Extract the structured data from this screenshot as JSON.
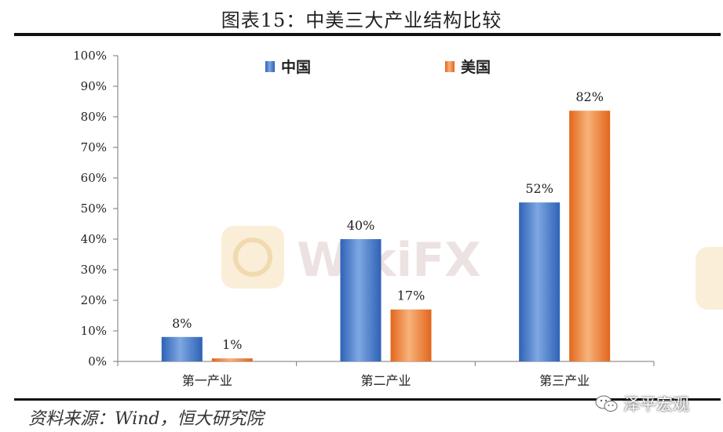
{
  "title": "图表15：中美三大产业结构比较",
  "source": "资料来源：Wind，恒大研究院",
  "wechat_account": "泽平宏观",
  "watermark_text": "WikiFX",
  "colors": {
    "china": "#4a7dc9",
    "usa": "#ee7a30"
  },
  "chart_data": {
    "type": "bar",
    "categories": [
      "第一产业",
      "第二产业",
      "第三产业"
    ],
    "series": [
      {
        "name": "中国",
        "values": [
          8,
          40,
          52
        ]
      },
      {
        "name": "美国",
        "values": [
          1,
          17,
          82
        ]
      }
    ],
    "value_labels": [
      [
        "8%",
        "40%",
        "52%"
      ],
      [
        "1%",
        "17%",
        "82%"
      ]
    ],
    "ylim": [
      0,
      100
    ],
    "yticks": [
      "0%",
      "10%",
      "20%",
      "30%",
      "40%",
      "50%",
      "60%",
      "70%",
      "80%",
      "90%",
      "100%"
    ],
    "legend_position": "top",
    "grid": false
  }
}
